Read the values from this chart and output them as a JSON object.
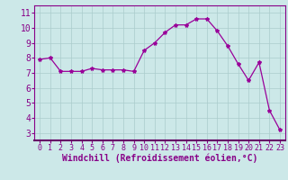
{
  "x": [
    0,
    1,
    2,
    3,
    4,
    5,
    6,
    7,
    8,
    9,
    10,
    11,
    12,
    13,
    14,
    15,
    16,
    17,
    18,
    19,
    20,
    21,
    22,
    23
  ],
  "y": [
    7.9,
    8.0,
    7.1,
    7.1,
    7.1,
    7.3,
    7.2,
    7.2,
    7.2,
    7.1,
    8.5,
    9.0,
    9.7,
    10.2,
    10.2,
    10.6,
    10.6,
    9.8,
    8.8,
    7.6,
    6.5,
    7.7,
    4.5,
    3.2
  ],
  "line_color": "#990099",
  "marker": "*",
  "marker_size": 3,
  "bg_color": "#cce8e8",
  "grid_color": "#aacccc",
  "xlabel": "Windchill (Refroidissement éolien,°C)",
  "xlabel_fontsize": 7,
  "yticks": [
    3,
    4,
    5,
    6,
    7,
    8,
    9,
    10,
    11
  ],
  "xticks": [
    0,
    1,
    2,
    3,
    4,
    5,
    6,
    7,
    8,
    9,
    10,
    11,
    12,
    13,
    14,
    15,
    16,
    17,
    18,
    19,
    20,
    21,
    22,
    23
  ],
  "ylim": [
    2.5,
    11.5
  ],
  "xlim": [
    -0.5,
    23.5
  ],
  "ytick_fontsize": 7,
  "xtick_fontsize": 6,
  "axis_color": "#880088",
  "spine_color": "#880088",
  "axis_bg_color": "#660066"
}
